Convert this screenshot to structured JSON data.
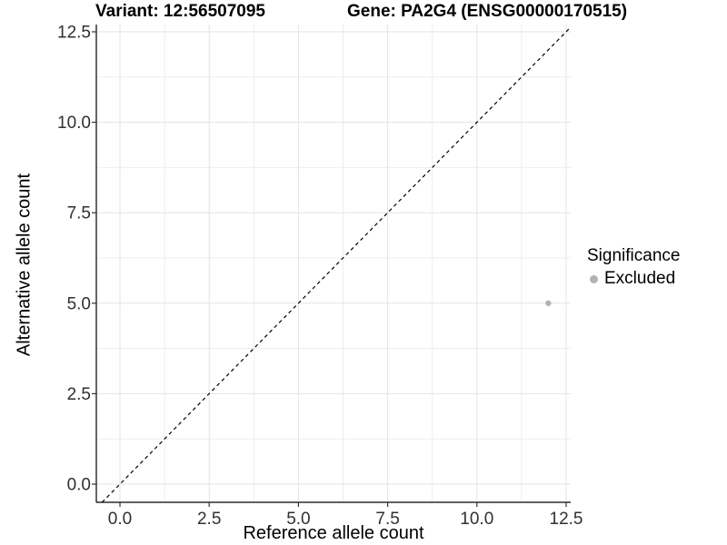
{
  "chart_data": {
    "type": "scatter",
    "title_left": "Variant: 12:56507095",
    "title_right": "Gene: PA2G4 (ENSG00000170515)",
    "xlabel": "Reference allele count",
    "ylabel": "Alternative allele count",
    "x_ticks": [
      0.0,
      2.5,
      5.0,
      7.5,
      10.0,
      12.5
    ],
    "y_ticks": [
      0.0,
      2.5,
      5.0,
      7.5,
      10.0,
      12.5
    ],
    "x_tick_labels": [
      "0.0",
      "2.5",
      "5.0",
      "7.5",
      "10.0",
      "12.5"
    ],
    "y_tick_labels": [
      "0.0",
      "2.5",
      "5.0",
      "7.5",
      "10.0",
      "12.5"
    ],
    "x_minor_ticks": [
      1.25,
      3.75,
      6.25,
      8.75,
      11.25
    ],
    "y_minor_ticks": [
      1.25,
      3.75,
      6.25,
      8.75,
      11.25
    ],
    "xlim": [
      -0.66,
      12.63
    ],
    "ylim": [
      -0.5,
      12.7
    ],
    "grid": {
      "major_color": "#e3e3e3",
      "minor_color": "#eeeeee"
    },
    "axis_line_color": "#000000",
    "tick_color": "#333333",
    "tick_label_color": "#303030",
    "reference_line": {
      "type": "identity",
      "slope": 1,
      "intercept": 0,
      "style": "dashed",
      "color": "#000000"
    },
    "series": [
      {
        "name": "Excluded",
        "color": "#b3b3b3",
        "points": [
          {
            "x": 12,
            "y": 5
          }
        ]
      }
    ],
    "legend": {
      "title": "Significance",
      "position": "right",
      "items": [
        {
          "label": "Excluded",
          "color": "#b3b3b3"
        }
      ]
    }
  }
}
